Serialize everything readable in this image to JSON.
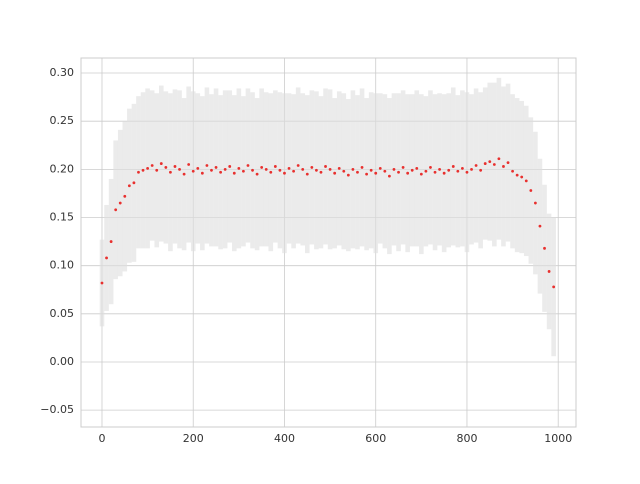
{
  "chart_data": {
    "type": "scatter",
    "x": [
      0,
      10,
      20,
      30,
      40,
      50,
      60,
      70,
      80,
      90,
      100,
      110,
      120,
      130,
      140,
      150,
      160,
      170,
      180,
      190,
      200,
      210,
      220,
      230,
      240,
      250,
      260,
      270,
      280,
      290,
      300,
      310,
      320,
      330,
      340,
      350,
      360,
      370,
      380,
      390,
      400,
      410,
      420,
      430,
      440,
      450,
      460,
      470,
      480,
      490,
      500,
      510,
      520,
      530,
      540,
      550,
      560,
      570,
      580,
      590,
      600,
      610,
      620,
      630,
      640,
      650,
      660,
      670,
      680,
      690,
      700,
      710,
      720,
      730,
      740,
      750,
      760,
      770,
      780,
      790,
      800,
      810,
      820,
      830,
      840,
      850,
      860,
      870,
      880,
      890,
      900,
      910,
      920,
      930,
      940,
      950,
      960,
      970,
      980,
      990
    ],
    "values": [
      0.082,
      0.108,
      0.125,
      0.158,
      0.165,
      0.172,
      0.183,
      0.186,
      0.197,
      0.199,
      0.201,
      0.204,
      0.199,
      0.206,
      0.202,
      0.197,
      0.203,
      0.2,
      0.195,
      0.205,
      0.198,
      0.201,
      0.196,
      0.204,
      0.199,
      0.202,
      0.197,
      0.2,
      0.203,
      0.196,
      0.201,
      0.198,
      0.204,
      0.199,
      0.195,
      0.202,
      0.2,
      0.197,
      0.203,
      0.199,
      0.196,
      0.201,
      0.198,
      0.204,
      0.2,
      0.195,
      0.202,
      0.199,
      0.197,
      0.203,
      0.2,
      0.196,
      0.201,
      0.198,
      0.194,
      0.2,
      0.197,
      0.202,
      0.195,
      0.199,
      0.196,
      0.201,
      0.198,
      0.193,
      0.2,
      0.197,
      0.202,
      0.196,
      0.199,
      0.201,
      0.195,
      0.198,
      0.202,
      0.197,
      0.2,
      0.196,
      0.199,
      0.203,
      0.198,
      0.201,
      0.197,
      0.2,
      0.204,
      0.199,
      0.206,
      0.208,
      0.205,
      0.211,
      0.203,
      0.207,
      0.198,
      0.194,
      0.192,
      0.188,
      0.178,
      0.165,
      0.141,
      0.118,
      0.094,
      0.078
    ],
    "errors": [
      0.045,
      0.055,
      0.065,
      0.072,
      0.076,
      0.078,
      0.08,
      0.082,
      0.079,
      0.081,
      0.083,
      0.078,
      0.08,
      0.081,
      0.079,
      0.082,
      0.08,
      0.082,
      0.079,
      0.081,
      0.083,
      0.078,
      0.08,
      0.081,
      0.079,
      0.082,
      0.08,
      0.082,
      0.079,
      0.081,
      0.083,
      0.078,
      0.08,
      0.081,
      0.079,
      0.082,
      0.08,
      0.082,
      0.079,
      0.081,
      0.083,
      0.078,
      0.08,
      0.081,
      0.079,
      0.082,
      0.08,
      0.082,
      0.079,
      0.081,
      0.083,
      0.078,
      0.08,
      0.081,
      0.079,
      0.082,
      0.08,
      0.082,
      0.079,
      0.081,
      0.083,
      0.078,
      0.08,
      0.081,
      0.079,
      0.082,
      0.08,
      0.082,
      0.079,
      0.081,
      0.083,
      0.078,
      0.08,
      0.081,
      0.079,
      0.082,
      0.08,
      0.082,
      0.079,
      0.081,
      0.083,
      0.078,
      0.08,
      0.081,
      0.079,
      0.082,
      0.085,
      0.084,
      0.083,
      0.082,
      0.08,
      0.08,
      0.079,
      0.078,
      0.076,
      0.074,
      0.07,
      0.066,
      0.06,
      0.072
    ],
    "color": "#e8302e",
    "error_color": "#dddddd",
    "xlim": [
      -46,
      1039
    ],
    "ylim": [
      -0.0675,
      0.3156
    ],
    "xticks": [
      0,
      200,
      400,
      600,
      800,
      1000
    ],
    "yticks": [
      {
        "value": -0.05,
        "label": "−0.05"
      },
      {
        "value": 0,
        "label": "0.00"
      },
      {
        "value": 0.05,
        "label": "0.05"
      },
      {
        "value": 0.1,
        "label": "0.10"
      },
      {
        "value": 0.15,
        "label": "0.15"
      },
      {
        "value": 0.2,
        "label": "0.20"
      },
      {
        "value": 0.25,
        "label": "0.25"
      },
      {
        "value": 0.3,
        "label": "0.30"
      }
    ],
    "grid": true
  }
}
